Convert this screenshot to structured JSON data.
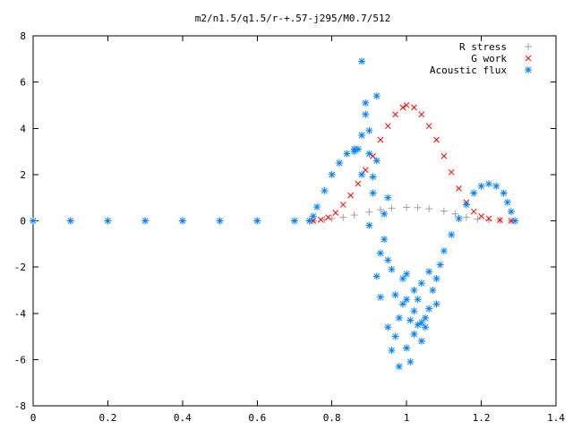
{
  "chart_data": {
    "type": "scatter",
    "title": "m2/n1.5/q1.5/r-+.57-j295/M0.7/512",
    "xlabel": "",
    "ylabel": "",
    "xlim": [
      0,
      1.4
    ],
    "ylim": [
      -8,
      8
    ],
    "xticks": [
      "0",
      "0.2",
      "0.4",
      "0.6",
      "0.8",
      "1",
      "1.2",
      "1.4"
    ],
    "yticks": [
      "-8",
      "-6",
      "-4",
      "-2",
      "0",
      "2",
      "4",
      "6",
      "8"
    ],
    "grid": false,
    "legend_position": "top-right",
    "series": [
      {
        "name": "R stress",
        "marker": "plus",
        "color": "#a0a0a0",
        "points": [
          [
            0.0,
            0.0
          ],
          [
            0.1,
            0.0
          ],
          [
            0.2,
            0.0
          ],
          [
            0.3,
            0.0
          ],
          [
            0.4,
            0.0
          ],
          [
            0.5,
            0.0
          ],
          [
            0.6,
            0.0
          ],
          [
            0.7,
            0.0
          ],
          [
            0.75,
            0.0
          ],
          [
            0.78,
            0.05
          ],
          [
            0.8,
            0.1
          ],
          [
            0.83,
            0.15
          ],
          [
            0.86,
            0.25
          ],
          [
            0.9,
            0.38
          ],
          [
            0.93,
            0.48
          ],
          [
            0.96,
            0.55
          ],
          [
            1.0,
            0.58
          ],
          [
            1.03,
            0.57
          ],
          [
            1.06,
            0.52
          ],
          [
            1.1,
            0.42
          ],
          [
            1.13,
            0.3
          ],
          [
            1.16,
            0.15
          ],
          [
            1.19,
            0.07
          ],
          [
            1.22,
            0.03
          ],
          [
            1.25,
            0.02
          ],
          [
            1.28,
            0.0
          ]
        ]
      },
      {
        "name": "G work",
        "marker": "x",
        "color": "#ff0000",
        "points": [
          [
            0.75,
            0.0
          ],
          [
            0.77,
            0.05
          ],
          [
            0.79,
            0.15
          ],
          [
            0.81,
            0.35
          ],
          [
            0.83,
            0.7
          ],
          [
            0.85,
            1.1
          ],
          [
            0.87,
            1.6
          ],
          [
            0.89,
            2.2
          ],
          [
            0.91,
            2.8
          ],
          [
            0.93,
            3.5
          ],
          [
            0.95,
            4.1
          ],
          [
            0.97,
            4.6
          ],
          [
            0.99,
            4.9
          ],
          [
            1.0,
            5.0
          ],
          [
            1.02,
            4.9
          ],
          [
            1.04,
            4.6
          ],
          [
            1.06,
            4.1
          ],
          [
            1.08,
            3.5
          ],
          [
            1.1,
            2.8
          ],
          [
            1.12,
            2.1
          ],
          [
            1.14,
            1.4
          ],
          [
            1.16,
            0.8
          ],
          [
            1.18,
            0.4
          ],
          [
            1.2,
            0.2
          ],
          [
            1.22,
            0.1
          ],
          [
            1.25,
            0.03
          ],
          [
            1.28,
            0.0
          ]
        ]
      },
      {
        "name": "Acoustic flux",
        "marker": "star",
        "color": "#0080ff",
        "points": [
          [
            0.0,
            0.0
          ],
          [
            0.1,
            0.0
          ],
          [
            0.2,
            0.0
          ],
          [
            0.3,
            0.0
          ],
          [
            0.4,
            0.0
          ],
          [
            0.5,
            0.0
          ],
          [
            0.6,
            0.0
          ],
          [
            0.7,
            0.0
          ],
          [
            0.74,
            0.0
          ],
          [
            0.75,
            0.2
          ],
          [
            0.76,
            0.6
          ],
          [
            0.78,
            1.3
          ],
          [
            0.8,
            2.0
          ],
          [
            0.82,
            2.5
          ],
          [
            0.84,
            2.9
          ],
          [
            0.86,
            3.1
          ],
          [
            0.87,
            3.1
          ],
          [
            0.88,
            2.0
          ],
          [
            0.88,
            3.7
          ],
          [
            0.89,
            4.6
          ],
          [
            0.89,
            5.1
          ],
          [
            0.9,
            3.9
          ],
          [
            0.9,
            2.9
          ],
          [
            0.91,
            1.9
          ],
          [
            0.91,
            1.2
          ],
          [
            0.92,
            5.4
          ],
          [
            0.92,
            2.6
          ],
          [
            0.92,
            -2.4
          ],
          [
            0.93,
            -1.4
          ],
          [
            0.93,
            -3.3
          ],
          [
            0.94,
            0.3
          ],
          [
            0.94,
            -0.8
          ],
          [
            0.95,
            -1.7
          ],
          [
            0.95,
            -4.6
          ],
          [
            0.96,
            -2.1
          ],
          [
            0.96,
            -5.6
          ],
          [
            0.97,
            -3.2
          ],
          [
            0.97,
            -5.0
          ],
          [
            0.98,
            -4.2
          ],
          [
            0.98,
            -6.3
          ],
          [
            0.99,
            -3.6
          ],
          [
            0.99,
            -2.5
          ],
          [
            1.0,
            -5.5
          ],
          [
            1.0,
            -3.4
          ],
          [
            1.0,
            -2.3
          ],
          [
            1.01,
            -4.3
          ],
          [
            1.01,
            -6.1
          ],
          [
            1.02,
            -3.0
          ],
          [
            1.02,
            -4.9
          ],
          [
            1.03,
            -4.5
          ],
          [
            1.03,
            -3.4
          ],
          [
            1.04,
            -5.2
          ],
          [
            1.04,
            -2.7
          ],
          [
            1.05,
            -4.2
          ],
          [
            1.05,
            -4.6
          ],
          [
            1.06,
            -3.8
          ],
          [
            1.06,
            -2.2
          ],
          [
            1.07,
            -3.0
          ],
          [
            1.08,
            -2.5
          ],
          [
            1.09,
            -1.9
          ],
          [
            1.1,
            -1.3
          ],
          [
            1.12,
            -0.6
          ],
          [
            1.14,
            0.1
          ],
          [
            1.16,
            0.7
          ],
          [
            1.18,
            1.2
          ],
          [
            1.2,
            1.5
          ],
          [
            1.22,
            1.6
          ],
          [
            1.24,
            1.5
          ],
          [
            1.26,
            1.2
          ],
          [
            1.27,
            0.8
          ],
          [
            1.28,
            0.4
          ],
          [
            1.29,
            0.0
          ],
          [
            0.88,
            6.9
          ],
          [
            0.86,
            3.0
          ],
          [
            0.9,
            -0.2
          ],
          [
            0.95,
            1.0
          ],
          [
            1.02,
            -3.9
          ],
          [
            1.04,
            -4.4
          ],
          [
            1.08,
            -3.6
          ]
        ]
      }
    ]
  }
}
